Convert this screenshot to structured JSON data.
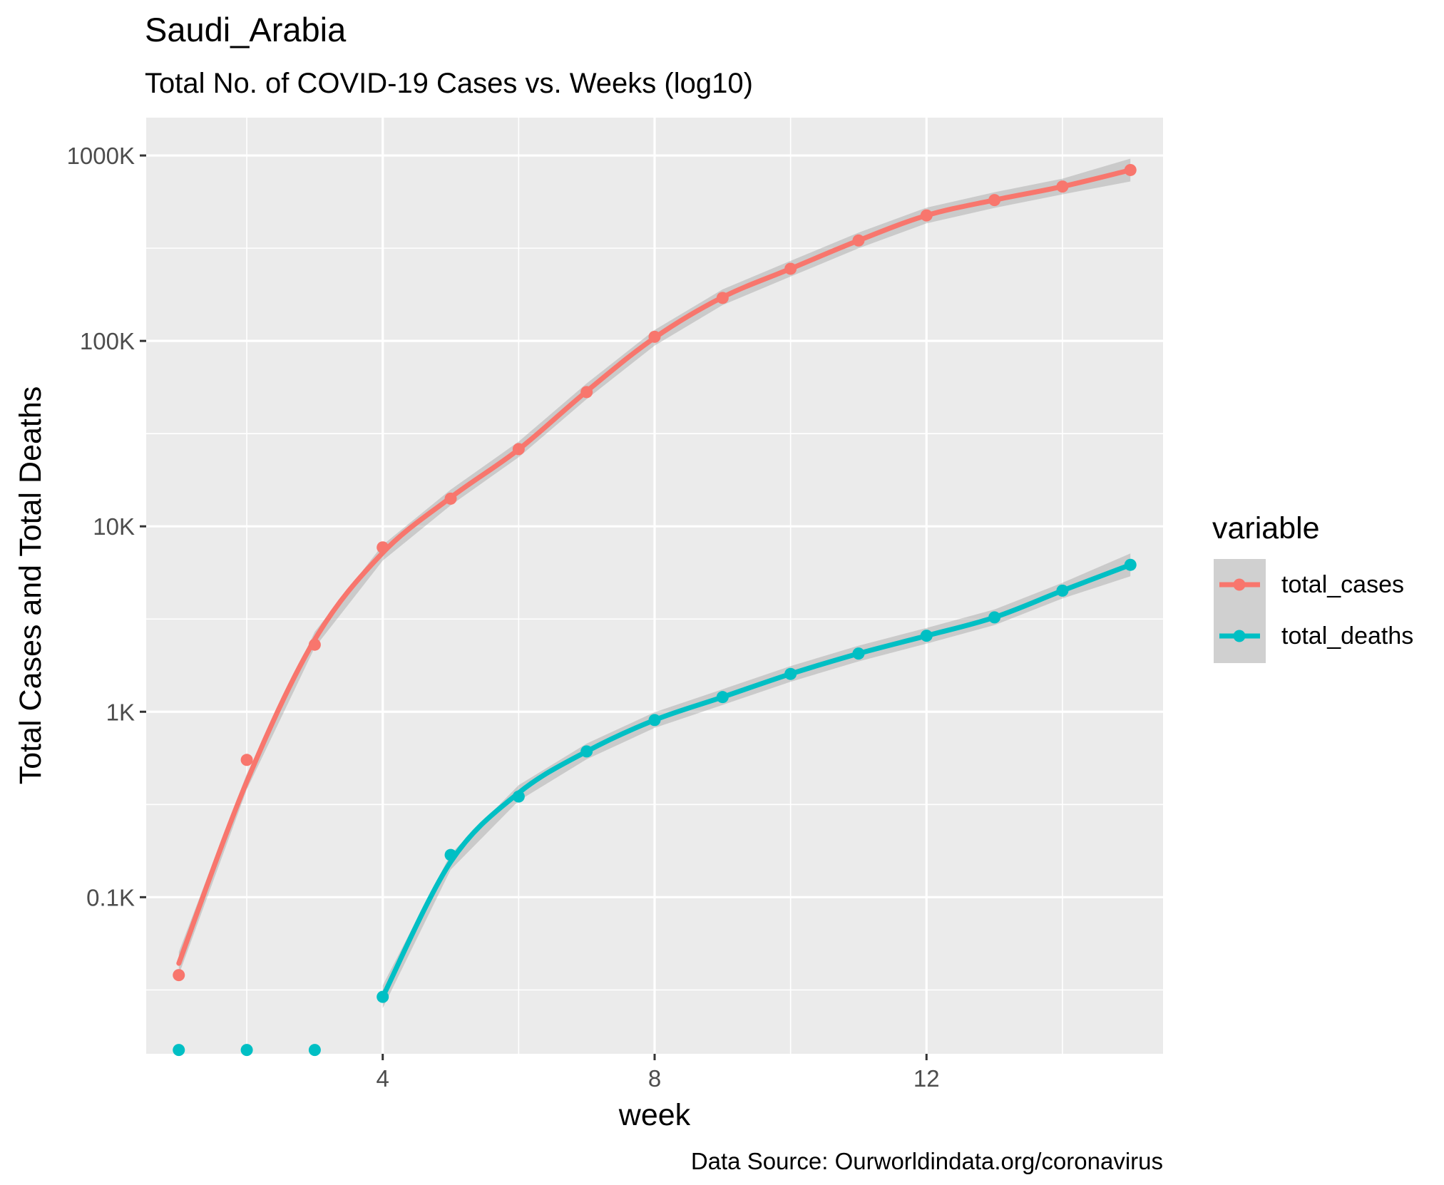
{
  "chart_data": {
    "type": "line",
    "title": "Saudi_Arabia",
    "subtitle": "Total No. of COVID-19 Cases vs. Weeks (log10)",
    "xlabel": "week",
    "ylabel": "Total Cases and Total Deaths",
    "caption": "Data Source: Ourworldindata.org/coronavirus",
    "y_scale": "log10",
    "xlim": [
      0.52,
      15.48
    ],
    "ylim": [
      0.0143,
      1600
    ],
    "x_ticks": [
      4,
      8,
      12
    ],
    "x_tick_labels": [
      "4",
      "8",
      "12"
    ],
    "y_ticks": [
      0.1,
      1,
      10,
      100,
      1000
    ],
    "y_tick_labels": [
      "0.1K",
      "1K",
      "10K",
      "100K",
      "1000K"
    ],
    "grid": true,
    "legend": {
      "title": "variable",
      "placement": "right",
      "entries": [
        "total_cases",
        "total_deaths"
      ]
    },
    "series": [
      {
        "name": "total_cases",
        "color": "#F8766D",
        "x": [
          1,
          2,
          3,
          4,
          5,
          6,
          7,
          8,
          9,
          10,
          11,
          12,
          13,
          14,
          15
        ],
        "values": [
          0.038,
          0.55,
          2.3,
          7.7,
          14.1,
          26.1,
          53.0,
          105.3,
          170.6,
          245.0,
          348.0,
          475.0,
          575.0,
          680.0,
          835.0
        ],
        "trend": [
          0.044,
          0.42,
          2.45,
          7.2,
          14.3,
          26.0,
          53.5,
          104.0,
          172.0,
          245.0,
          348.0,
          475.0,
          575.0,
          680.0,
          835.0
        ]
      },
      {
        "name": "total_deaths",
        "color": "#00BFC4",
        "x": [
          1,
          2,
          3,
          4,
          5,
          6,
          7,
          8,
          9,
          10,
          11,
          12,
          13,
          14,
          15
        ],
        "values": [
          0.015,
          0.015,
          0.015,
          0.029,
          0.169,
          0.349,
          0.611,
          0.902,
          1.2,
          1.6,
          2.06,
          2.57,
          3.23,
          4.5,
          6.2
        ],
        "trend": [
          null,
          null,
          null,
          0.029,
          0.155,
          0.365,
          0.611,
          0.902,
          1.2,
          1.6,
          2.06,
          2.57,
          3.23,
          4.5,
          6.2
        ]
      }
    ]
  }
}
